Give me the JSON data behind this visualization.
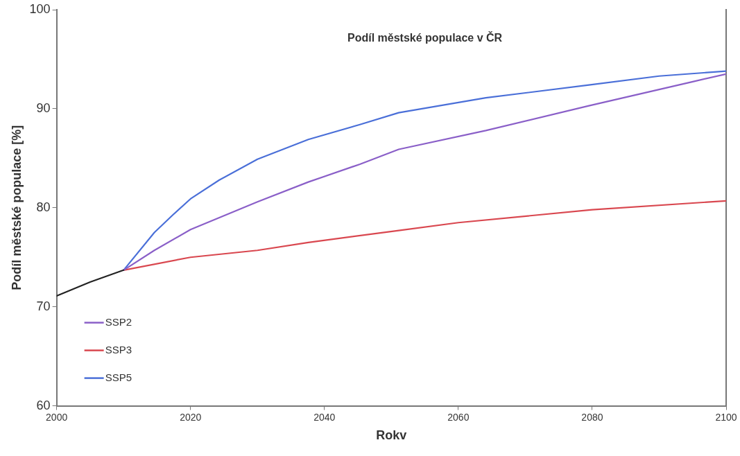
{
  "chart_data": {
    "type": "line",
    "title": "Podíl městské populace v ČR",
    "xlabel": "Rokv",
    "ylabel": "Podíl městské populace [%]",
    "xlim": [
      2000,
      2100
    ],
    "xticks": [
      2000,
      2020,
      2040,
      2060,
      2080,
      2100
    ],
    "ylim": [
      60,
      100
    ],
    "yticks": [
      60,
      70,
      80,
      90,
      100
    ],
    "grid": false,
    "legend": "bottom left",
    "marker": "none",
    "line_style": "solid",
    "series": [
      {
        "color": "#222222",
        "x": [
          2000,
          2005,
          2010
        ],
        "values": [
          71.1,
          72.5,
          73.7
        ]
      },
      {
        "name": "SSP2",
        "color": "#8a5fc8",
        "x": [
          2010,
          2014.6,
          2020,
          2030,
          2037.6,
          2045.3,
          2051.1,
          2064.1,
          2079.5,
          2094.8,
          2100
        ],
        "values": [
          73.7,
          75.7,
          77.8,
          80.6,
          82.6,
          84.4,
          85.9,
          87.8,
          90.3,
          92.7,
          93.5
        ]
      },
      {
        "name": "SSP3",
        "color": "#d9474f",
        "x": [
          2010,
          2020,
          2030,
          2037.6,
          2051.1,
          2060,
          2080,
          2100
        ],
        "values": [
          73.7,
          75.0,
          75.7,
          76.5,
          77.7,
          78.5,
          79.8,
          80.7
        ]
      },
      {
        "name": "SSP5",
        "color": "#4a6fd8",
        "x": [
          2010,
          2014.6,
          2017.4,
          2020,
          2024.3,
          2030,
          2037.6,
          2045.3,
          2051.1,
          2064.1,
          2079.5,
          2090,
          2100
        ],
        "values": [
          73.7,
          77.5,
          79.3,
          80.9,
          82.8,
          84.9,
          86.9,
          88.4,
          89.6,
          91.1,
          92.4,
          93.3,
          93.8
        ]
      }
    ]
  }
}
